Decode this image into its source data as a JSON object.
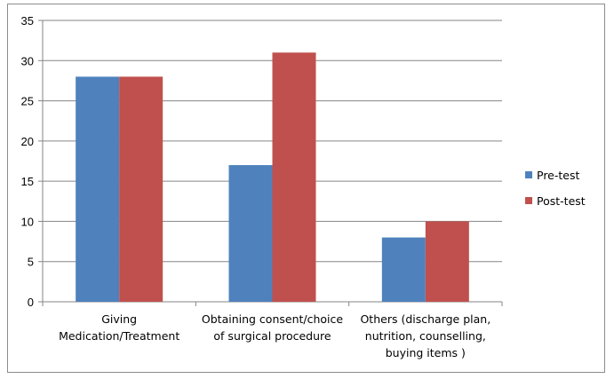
{
  "chart_data": {
    "type": "bar",
    "title": "",
    "xlabel": "",
    "ylabel": "",
    "categories": [
      [
        "Giving",
        "Medication/Treatment"
      ],
      [
        "Obtaining consent/choice",
        "of surgical procedure"
      ],
      [
        "Others (discharge plan,",
        "nutrition, counselling,",
        "buying items  )"
      ]
    ],
    "series": [
      {
        "name": "Pre-test",
        "values": [
          28,
          17,
          8
        ],
        "color": "#4f81bd"
      },
      {
        "name": "Post-test",
        "values": [
          28,
          31,
          10
        ],
        "color": "#c0504d"
      }
    ],
    "ylim": [
      0,
      35
    ],
    "yticks": [
      0,
      5,
      10,
      15,
      20,
      25,
      30,
      35
    ],
    "grid": true,
    "legend_position": "right"
  }
}
